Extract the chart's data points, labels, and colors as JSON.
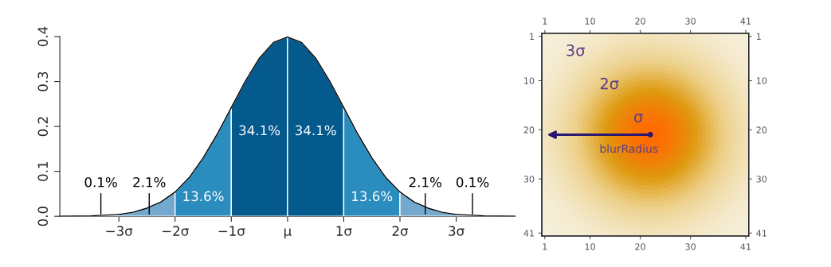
{
  "chart_data": [
    {
      "type": "area",
      "xlim": [
        -4.05,
        4.05
      ],
      "ylim": [
        0,
        0.4
      ],
      "yticks": [
        {
          "value": 0,
          "label": "0.0"
        },
        0.1,
        0.2,
        0.3,
        0.4
      ],
      "xticks": [
        {
          "value": -3,
          "label": "−3σ"
        },
        {
          "value": -2,
          "label": "−2σ"
        },
        {
          "value": -1,
          "label": "−1σ"
        },
        {
          "value": 0,
          "label": "μ"
        },
        {
          "value": 1,
          "label": "1σ"
        },
        {
          "value": 2,
          "label": "2σ"
        },
        {
          "value": 3,
          "label": "3σ"
        }
      ],
      "grid": false,
      "legend": false,
      "series": [
        {
          "type": "area",
          "color": "#a9c6e2",
          "x": [
            -4.05,
            -3.5,
            -3
          ],
          "values": [
            0.0,
            0.001,
            0.004
          ]
        },
        {
          "type": "area",
          "color": "#74a9cf",
          "x": [
            -3,
            -2.75,
            -2.5,
            -2.25,
            -2
          ],
          "values": [
            0.004,
            0.009,
            0.018,
            0.032,
            0.054
          ]
        },
        {
          "type": "area",
          "color": "#2b8cbe",
          "x": [
            -2,
            -1.75,
            -1.5,
            -1.25,
            -1
          ],
          "values": [
            0.054,
            0.086,
            0.13,
            0.183,
            0.242
          ]
        },
        {
          "type": "area",
          "color": "#045a8d",
          "x": [
            -1,
            -0.75,
            -0.5,
            -0.25,
            0
          ],
          "values": [
            0.242,
            0.301,
            0.352,
            0.387,
            0.399
          ]
        },
        {
          "type": "area",
          "color": "#045a8d",
          "x": [
            0,
            0.25,
            0.5,
            0.75,
            1
          ],
          "values": [
            0.399,
            0.387,
            0.352,
            0.301,
            0.242
          ]
        },
        {
          "type": "area",
          "color": "#2b8cbe",
          "x": [
            1,
            1.25,
            1.5,
            1.75,
            2
          ],
          "values": [
            0.242,
            0.183,
            0.13,
            0.086,
            0.054
          ]
        },
        {
          "type": "area",
          "color": "#74a9cf",
          "x": [
            2,
            2.25,
            2.5,
            2.75,
            3
          ],
          "values": [
            0.054,
            0.032,
            0.018,
            0.009,
            0.004
          ]
        },
        {
          "type": "area",
          "color": "#a9c6e2",
          "x": [
            3,
            3.5,
            4.05
          ],
          "values": [
            0.004,
            0.001,
            0.0
          ]
        }
      ],
      "annotations": [
        {
          "text": "0.1%",
          "x": -3.32,
          "y": 0.005
        },
        {
          "text": "2.1%",
          "x": -2.46,
          "y": 0.005
        },
        "13.6%",
        "34.1%",
        "34.1%",
        "13.6%",
        {
          "text": "2.1%",
          "x": 2.45,
          "y": 0.005
        },
        {
          "text": "0.1%",
          "x": 3.29,
          "y": 0.005
        }
      ]
    },
    {
      "type": "scatter",
      "marker": "circle",
      "series": [
        {
          "color": "#2a1870",
          "x": [
            22
          ],
          "values": [
            21
          ]
        }
      ],
      "xlim": [
        0.4,
        41.6
      ],
      "xticks": [
        1,
        10,
        20,
        30,
        41
      ],
      "x2lim": [
        0.4,
        41.6
      ],
      "x2ticks": [
        1,
        10,
        20,
        30,
        41
      ],
      "ylim": [
        41.6,
        0.4
      ],
      "yticks": [
        1,
        10,
        20,
        30,
        41
      ],
      "y2lim": [
        41.6,
        0.4
      ],
      "y2ticks": [
        1,
        10,
        20,
        30,
        41
      ],
      "annotations": [
        "3σ",
        "2σ",
        "σ",
        "blurRadius"
      ]
    }
  ]
}
